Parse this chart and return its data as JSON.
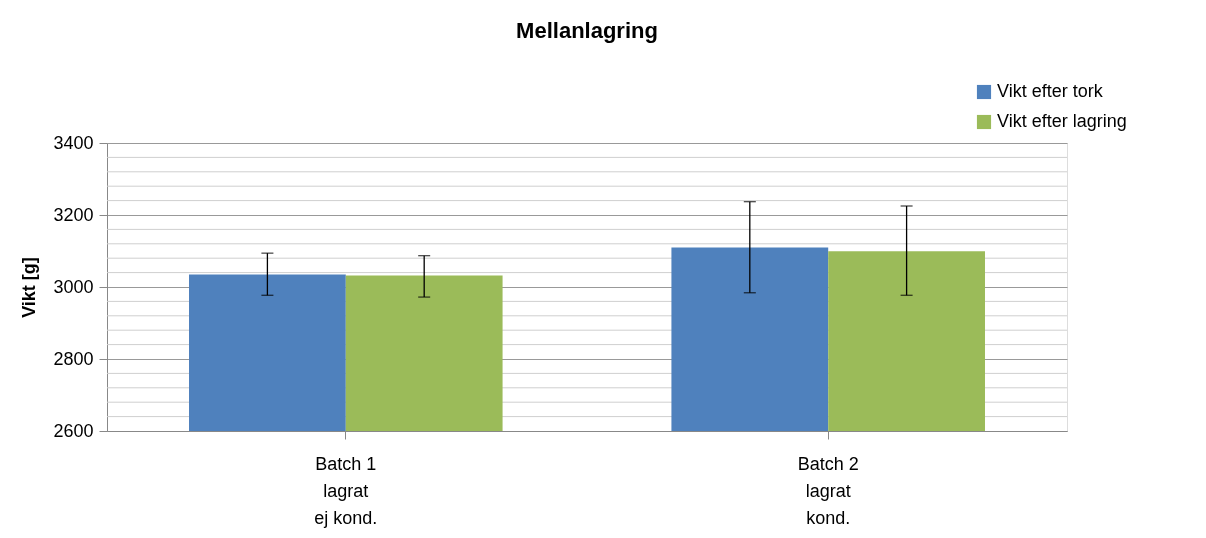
{
  "chart_data": {
    "type": "bar",
    "title": "Mellanlagring",
    "ylabel": "Vikt [g]",
    "categories": [
      "Batch 1\nlagrat\nej kond.",
      "Batch 2\nlagrat\nkond."
    ],
    "series": [
      {
        "name": "Vikt efter tork",
        "color": "#4f81bd",
        "values": [
          3035,
          3110
        ],
        "errors": [
          [
            2977,
            3094
          ],
          [
            2984,
            3237
          ]
        ]
      },
      {
        "name": "Vikt efter lagring",
        "color": "#9bbb59",
        "values": [
          3032,
          3099
        ],
        "errors": [
          [
            2972,
            3087
          ],
          [
            2977,
            3225
          ]
        ]
      }
    ],
    "ylim": [
      2600,
      3400
    ],
    "yticks": [
      2600,
      2800,
      3000,
      3200,
      3400
    ],
    "grid": "y",
    "legend": "top right"
  }
}
